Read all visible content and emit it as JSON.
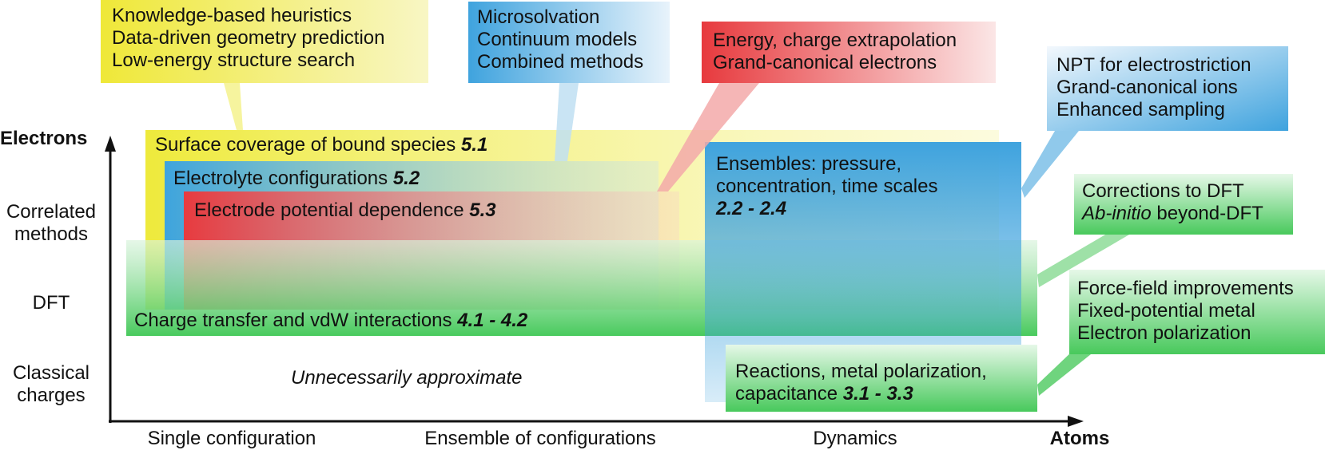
{
  "axes": {
    "y_title": "Electrons",
    "y_levels": [
      {
        "line1": "Correlated",
        "line2": "methods"
      },
      {
        "line1": "DFT",
        "line2": ""
      },
      {
        "line1": "Classical",
        "line2": "charges"
      }
    ],
    "x_title": "Atoms",
    "x_levels": [
      "Single configuration",
      "Ensemble of configurations",
      "Dynamics"
    ]
  },
  "regions": {
    "surface": {
      "label": "Surface coverage of bound species",
      "ref": "5.1"
    },
    "electrolyte": {
      "label": "Electrolyte configurations",
      "ref": "5.2"
    },
    "electrode": {
      "label": "Electrode potential dependence",
      "ref": "5.3"
    },
    "charge": {
      "label": "Charge transfer and vdW interactions",
      "ref": "4.1 - 4.2"
    },
    "ensembles": {
      "line1": "Ensembles: pressure,",
      "line2": "concentration, time scales",
      "ref": "2.2 - 2.4"
    },
    "reactions": {
      "line1": "Reactions, metal polarization,",
      "line2": "capacitance",
      "ref": "3.1 - 3.3"
    },
    "unnecessary": "Unnecessarily approximate"
  },
  "callouts": {
    "yellow": [
      "Knowledge-based heuristics",
      "Data-driven geometry prediction",
      "Low-energy structure search"
    ],
    "blue": [
      "Microsolvation",
      "Continuum models",
      "Combined methods"
    ],
    "red": [
      "Energy, charge extrapolation",
      "Grand-canonical electrons"
    ],
    "blue2": [
      "NPT for electrostriction",
      "Grand-canonical ions",
      "Enhanced sampling"
    ],
    "green1": {
      "line1": "Corrections to DFT",
      "line2_italic": "Ab-initio",
      "line2_rest": " beyond-DFT"
    },
    "green2": [
      "Force-field improvements",
      "Fixed-potential metal",
      "Electron polarization"
    ]
  },
  "colors": {
    "yellow": "#eeea3c",
    "blue": "#3ea4dd",
    "red": "#e83b3f",
    "green": "#3fc755"
  }
}
